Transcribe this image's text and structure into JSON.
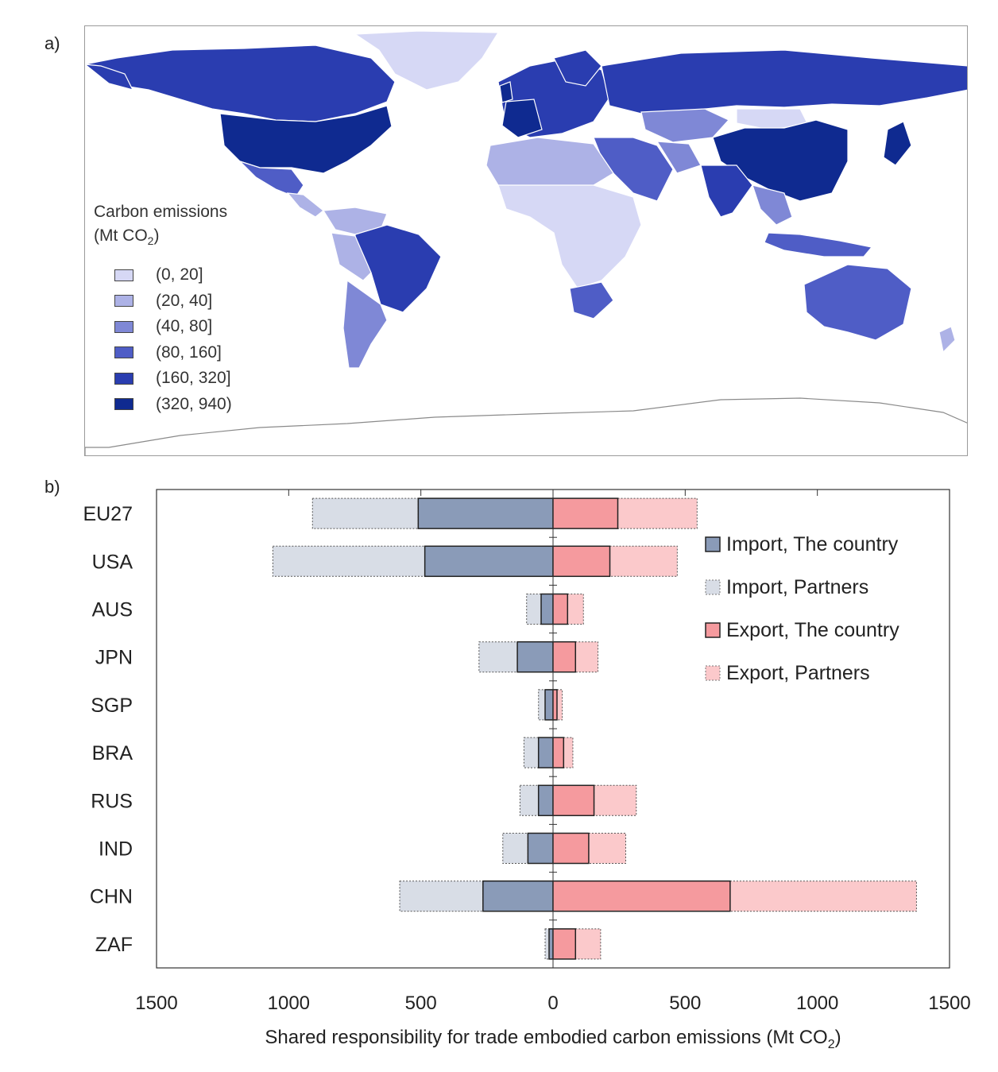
{
  "panels": {
    "a": "a)",
    "b": "b)"
  },
  "map": {
    "legend_title_line1": "Carbon emissions",
    "legend_title_line2_prefix": "(Mt CO",
    "legend_title_line2_sub": "2",
    "legend_title_line2_suffix": ")",
    "legend_items": [
      {
        "label": "(0, 20]",
        "color": "#d6d8f5"
      },
      {
        "label": "(20, 40]",
        "color": "#adb2e6"
      },
      {
        "label": "(40, 80]",
        "color": "#7f88d6"
      },
      {
        "label": "(80, 160]",
        "color": "#4f5dc6"
      },
      {
        "label": "(160, 320]",
        "color": "#2a3db0"
      },
      {
        "label": "(320, 940)",
        "color": "#0f2a90"
      }
    ]
  },
  "chart_data": {
    "type": "bar",
    "orientation": "horizontal",
    "stacked": true,
    "categories": [
      "EU27",
      "USA",
      "AUS",
      "JPN",
      "SGP",
      "BRA",
      "RUS",
      "IND",
      "CHN",
      "ZAF"
    ],
    "series": [
      {
        "name": "Import, The country",
        "color": "#8a9bb8",
        "values": [
          -510,
          -485,
          -45,
          -135,
          -30,
          -55,
          -55,
          -95,
          -265,
          -15
        ]
      },
      {
        "name": "Import, Partners",
        "color": "#d8dde6",
        "values": [
          -400,
          -575,
          -55,
          -145,
          -25,
          -55,
          -70,
          -95,
          -315,
          -15
        ]
      },
      {
        "name": "Export, The country",
        "color": "#f59a9e",
        "values": [
          245,
          215,
          55,
          85,
          15,
          40,
          155,
          135,
          670,
          85
        ]
      },
      {
        "name": "Export, Partners",
        "color": "#fbc9cb",
        "values": [
          300,
          255,
          60,
          85,
          20,
          35,
          160,
          140,
          705,
          95
        ]
      }
    ],
    "xlabel_prefix": "Shared responsibility for trade embodied carbon emissions (Mt CO",
    "xlabel_sub": "2",
    "xlabel_suffix": ")",
    "xlim": [
      -1500,
      1500
    ],
    "ticks": [
      "1500",
      "1000",
      "500",
      "0",
      "500",
      "1000",
      "1500"
    ],
    "tick_values": [
      -1500,
      -1000,
      -500,
      0,
      500,
      1000,
      1500
    ],
    "legend_position": "top-right",
    "grid": false
  }
}
